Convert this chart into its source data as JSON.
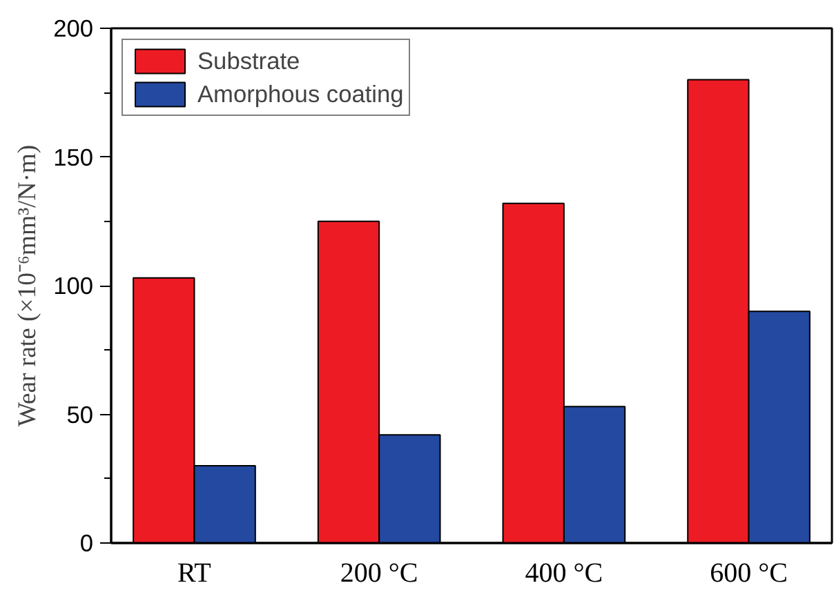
{
  "chart_data": {
    "type": "bar",
    "ylabel": "Wear rate (×10⁻⁶mm³/N·m)",
    "categories": [
      "RT",
      "200 °C",
      "400 °C",
      "600 °C"
    ],
    "series": [
      {
        "name": "Substrate",
        "color": "#ed1c24",
        "values": [
          103,
          125,
          132,
          180
        ]
      },
      {
        "name": "Amorphous coating",
        "color": "#2449a0",
        "values": [
          30,
          42,
          53,
          90
        ]
      }
    ],
    "ylim": [
      0,
      200
    ],
    "yticks": [
      0,
      {
        "value": 25,
        "label": null
      },
      50,
      {
        "value": 75,
        "label": null
      },
      100,
      {
        "value": 125,
        "label": null
      },
      150,
      {
        "value": 175,
        "label": null
      },
      200
    ],
    "legend": "top left",
    "grid": false
  }
}
